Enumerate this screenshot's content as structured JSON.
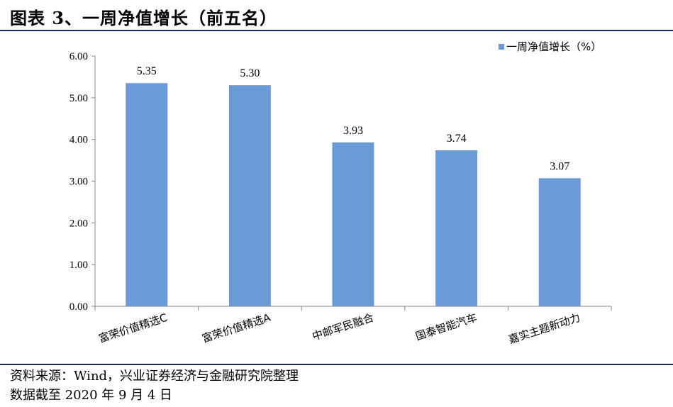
{
  "page": {
    "title": "图表 3、一周净值增长（前五名）",
    "source": "资料来源：Wind，兴业证券经济与金融研究院整理",
    "date_note": "数据截至 2020 年 9 月 4 日"
  },
  "colors": {
    "bar": "#6a9bd8",
    "rule": "#1f2a5c",
    "axis": "#888888"
  },
  "chart_data": {
    "type": "bar",
    "categories": [
      "富荣价值精选C",
      "富荣价值精选A",
      "中邮军民融合",
      "国泰智能汽车",
      "嘉实主题新动力"
    ],
    "series": [
      {
        "name": "一周净值增长（%）",
        "values": [
          5.35,
          5.3,
          3.93,
          3.74,
          3.07
        ]
      }
    ],
    "data_labels": [
      "5.35",
      "5.30",
      "3.93",
      "3.74",
      "3.07"
    ],
    "yticks": [
      "0.00",
      "1.00",
      "2.00",
      "3.00",
      "4.00",
      "5.00",
      "6.00"
    ],
    "ylim": [
      0,
      6
    ],
    "grid": false,
    "legend": "top-right"
  }
}
